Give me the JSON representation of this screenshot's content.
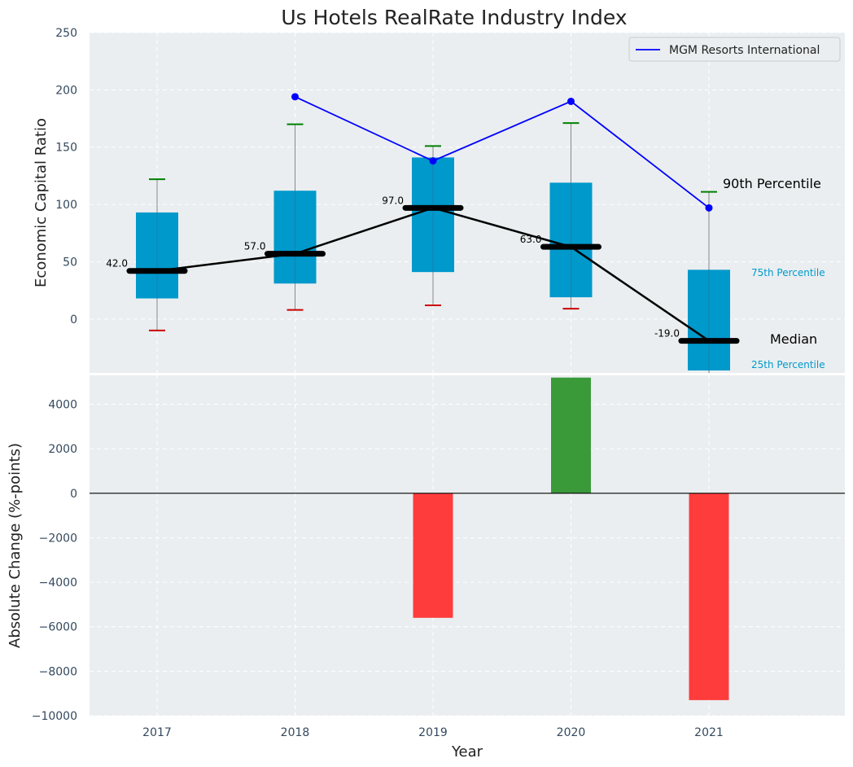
{
  "chart_data": [
    {
      "type": "box",
      "title": "Us Hotels RealRate Industry Index",
      "ylabel": "Economic Capital Ratio",
      "categories": [
        "2017",
        "2018",
        "2019",
        "2020",
        "2021"
      ],
      "ylim": [
        -47,
        250
      ],
      "yticks": [
        0,
        50,
        100,
        150,
        200,
        250
      ],
      "boxes": [
        {
          "year": "2017",
          "p10": -10,
          "p25": 18,
          "median": 42,
          "p75": 93,
          "p90": 122,
          "median_label": "42.0"
        },
        {
          "year": "2018",
          "p10": 8,
          "p25": 31,
          "median": 57,
          "p75": 112,
          "p90": 170,
          "median_label": "57.0"
        },
        {
          "year": "2019",
          "p10": 12,
          "p25": 41,
          "median": 97,
          "p75": 141,
          "p90": 151,
          "median_label": "97.0"
        },
        {
          "year": "2020",
          "p10": 9,
          "p25": 19,
          "median": 63,
          "p75": 119,
          "p90": 171,
          "median_label": "63.0"
        },
        {
          "year": "2021",
          "p10": null,
          "p25": -46,
          "median": -19,
          "p75": 43,
          "p90": 111,
          "median_label": "-19.0"
        }
      ],
      "series": [
        {
          "name": "MGM Resorts International",
          "x": [
            "2018",
            "2019",
            "2020",
            "2021"
          ],
          "values": [
            194,
            138,
            190,
            97
          ],
          "color": "#0000ff"
        }
      ],
      "annotations": {
        "p90": "90th Percentile",
        "p75": "75th Percentile",
        "median": "Median",
        "p25": "25th Percentile"
      },
      "legend": "top-right",
      "colors": {
        "box": "#0099cc",
        "median": "#000000",
        "upper_whisker": "#008000",
        "lower_whisker": "#cc0000"
      }
    },
    {
      "type": "bar",
      "ylabel": "Absolute Change (%-points)",
      "xlabel": "Year",
      "categories": [
        "2017",
        "2018",
        "2019",
        "2020",
        "2021"
      ],
      "values": [
        0,
        0,
        -5600,
        5200,
        -9300
      ],
      "ylim": [
        -10000,
        5300
      ],
      "yticks": [
        -10000,
        -8000,
        -6000,
        -4000,
        -2000,
        0,
        2000,
        4000
      ],
      "colors": {
        "positive": "#3a9a3a",
        "negative": "#ff3c3c"
      }
    }
  ]
}
